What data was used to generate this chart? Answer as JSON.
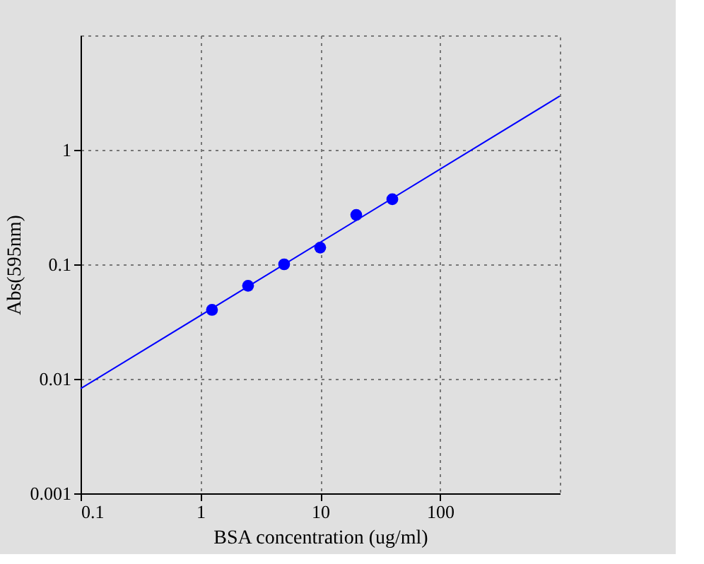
{
  "chart_data": {
    "type": "scatter",
    "xlabel": "BSA concentration (ug/ml)",
    "ylabel": "Abs(595nm)",
    "log": "xy",
    "grid": true,
    "marker": "circle",
    "xlim": [
      0.1,
      1000
    ],
    "ylim": [
      0.001,
      10
    ],
    "xticks": [
      0.1,
      1,
      10,
      100
    ],
    "yticks": [
      0.001,
      0.01,
      0.1,
      1
    ],
    "series": [
      {
        "color": "#0000ff",
        "x": [
          1.25,
          2.5,
          5,
          10,
          20,
          40
        ],
        "values": [
          0.04,
          0.065,
          0.1,
          0.14,
          0.27,
          0.37
        ]
      },
      {
        "type": "line",
        "color": "#0000ff",
        "marker": "none",
        "x": [
          0.1,
          1000
        ],
        "values": [
          0.0082,
          2.95
        ]
      }
    ]
  }
}
